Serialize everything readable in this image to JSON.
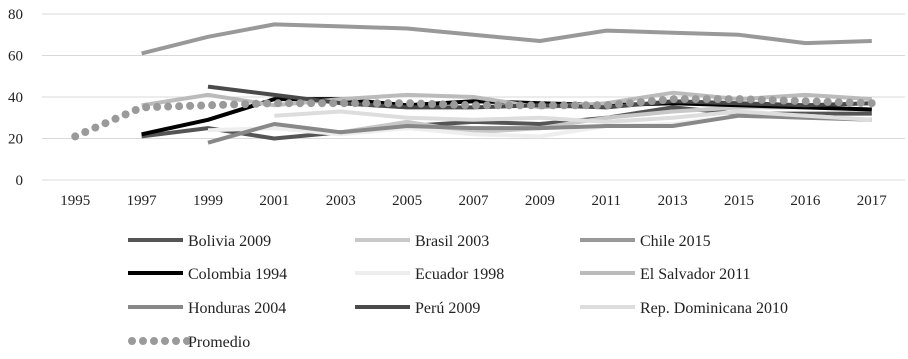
{
  "chart_data": {
    "type": "line",
    "title": "",
    "xlabel": "",
    "ylabel": "",
    "categories": [
      "1995",
      "1997",
      "1999",
      "2001",
      "2003",
      "2005",
      "2007",
      "2009",
      "2011",
      "2013",
      "2015",
      "2016",
      "2017"
    ],
    "ylim": [
      0,
      80
    ],
    "yticks": [
      0,
      20,
      40,
      60,
      80
    ],
    "grid": true,
    "legend_position": "bottom",
    "series": [
      {
        "name": "Bolivia 2009",
        "color": "#555555",
        "dash": "solid",
        "values": [
          null,
          21,
          25,
          20,
          23,
          26,
          28,
          27,
          30,
          35,
          32,
          32,
          32
        ]
      },
      {
        "name": "Brasil 2003",
        "color": "#c8c8c8",
        "dash": "solid",
        "values": [
          null,
          null,
          null,
          null,
          23,
          28,
          23,
          25,
          30,
          33,
          35,
          35,
          34
        ]
      },
      {
        "name": "Chile 2015",
        "color": "#999999",
        "dash": "solid",
        "values": [
          null,
          61,
          69,
          75,
          74,
          73,
          70,
          67,
          72,
          71,
          70,
          66,
          67
        ]
      },
      {
        "name": "Colombia 1994",
        "color": "#000000",
        "dash": "solid",
        "values": [
          null,
          22,
          29,
          39,
          39,
          36,
          38,
          37,
          36,
          37,
          36,
          35,
          34
        ]
      },
      {
        "name": "Ecuador 1998",
        "color": "#eeeeee",
        "dash": "solid",
        "values": [
          null,
          null,
          24,
          25,
          22,
          25,
          22,
          21,
          26,
          27,
          31,
          31,
          29
        ]
      },
      {
        "name": "El Salvador 2011",
        "color": "#bbbbbb",
        "dash": "solid",
        "values": [
          null,
          36,
          41,
          36,
          39,
          41,
          40,
          35,
          37,
          42,
          39,
          41,
          39
        ]
      },
      {
        "name": "Honduras 2004",
        "color": "#888888",
        "dash": "solid",
        "values": [
          null,
          null,
          18,
          27,
          23,
          26,
          25,
          25,
          26,
          26,
          31,
          30,
          29
        ]
      },
      {
        "name": "Perú 2009",
        "color": "#4a4a4a",
        "dash": "solid",
        "values": [
          null,
          null,
          45,
          41,
          37,
          35,
          35,
          36,
          35,
          38,
          37,
          36,
          37
        ]
      },
      {
        "name": "Rep. Dominicana 2010",
        "color": "#dddddd",
        "dash": "solid",
        "values": [
          null,
          null,
          null,
          31,
          33,
          30,
          29,
          30,
          28,
          30,
          33,
          31,
          29
        ]
      },
      {
        "name": "Promedio",
        "color": "#9a9a9a",
        "dash": "dotted",
        "values": [
          21,
          35,
          36,
          37,
          37,
          37,
          36,
          36,
          36,
          39,
          39,
          38,
          37
        ]
      }
    ]
  }
}
